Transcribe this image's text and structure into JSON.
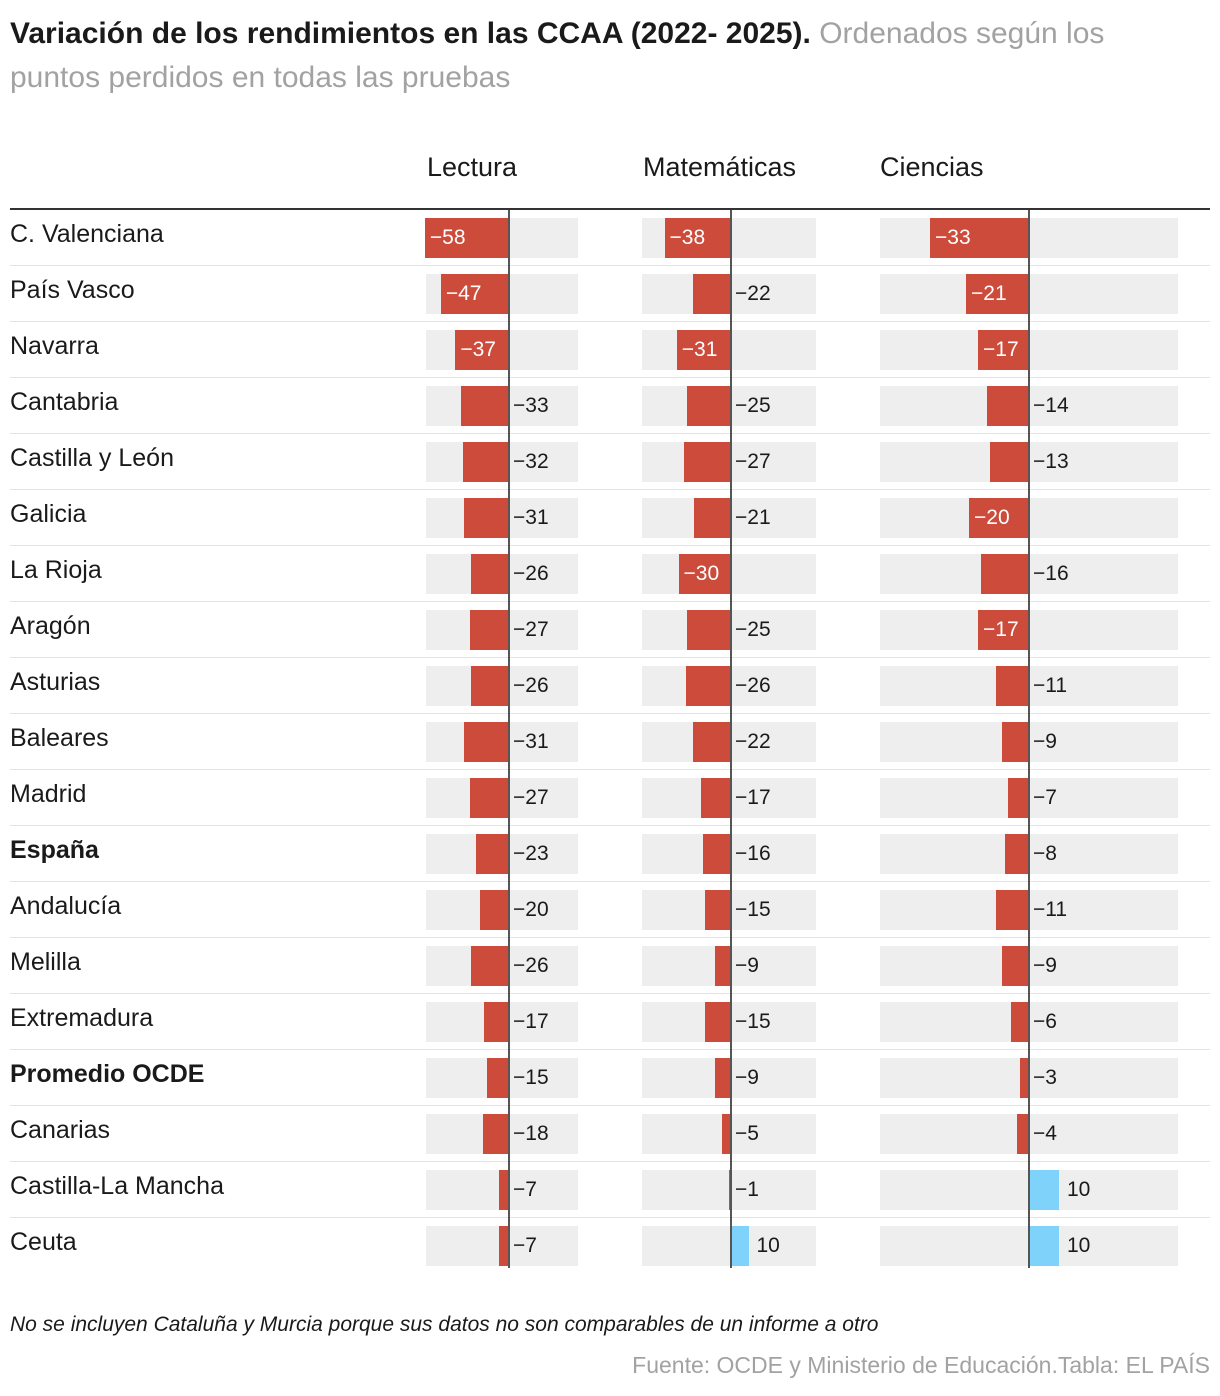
{
  "colors": {
    "negative": "#cd4b3b",
    "positive": "#7fd3fb",
    "background": "#eeeeee"
  },
  "chart_data": {
    "type": "bar",
    "title": "Variación de los rendimientos en las CCAA (2022- 2025)",
    "subtitle": "Ordenados según los puntos perdidos en todas las pruebas",
    "categories": [
      "C. Valenciana",
      "País Vasco",
      "Navarra",
      "Cantabria",
      "Castilla y León",
      "Galicia",
      "La Rioja",
      "Aragón",
      "Asturias",
      "Baleares",
      "Madrid",
      "España",
      "Andalucía",
      "Melilla",
      "Extremadura",
      "Promedio OCDE",
      "Canarias",
      "Castilla-La Mancha",
      "Ceuta"
    ],
    "bold_categories": [
      "España",
      "Promedio OCDE"
    ],
    "series": [
      {
        "name": "Lectura",
        "values": [
          -58,
          -47,
          -37,
          -33,
          -32,
          -31,
          -26,
          -27,
          -26,
          -31,
          -27,
          -23,
          -20,
          -26,
          -17,
          -15,
          -18,
          -7,
          -7
        ]
      },
      {
        "name": "Matemáticas",
        "values": [
          -38,
          -22,
          -31,
          -25,
          -27,
          -21,
          -30,
          -25,
          -26,
          -22,
          -17,
          -16,
          -15,
          -9,
          -15,
          -9,
          -5,
          -1,
          10
        ]
      },
      {
        "name": "Ciencias",
        "values": [
          -33,
          -21,
          -17,
          -14,
          -13,
          -20,
          -16,
          -17,
          -11,
          -9,
          -7,
          -8,
          -11,
          -9,
          -6,
          -3,
          -4,
          10,
          10
        ]
      }
    ],
    "note": "No se incluyen Cataluña y Murcia porque sus datos no son comparables de un informe a otro",
    "source": "Fuente: OCDE y Ministerio de Educación.Tabla: EL PAÍS"
  }
}
